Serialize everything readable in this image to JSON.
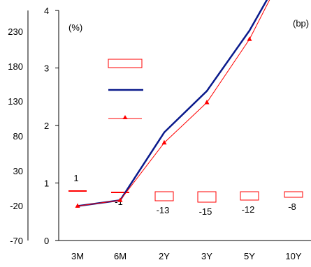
{
  "chart_data": {
    "type": "line",
    "categories": [
      "3M",
      "6M",
      "2Y",
      "3Y",
      "5Y",
      "10Y"
    ],
    "left_axis": {
      "label": "(%)",
      "ticks": [
        0,
        1,
        2,
        3,
        4
      ],
      "ylim": [
        0,
        4
      ]
    },
    "right_axis": {
      "label": "(bp)",
      "ticks": [
        -70,
        -20,
        30,
        80,
        130,
        180,
        230
      ],
      "ylim": [
        -70,
        260
      ]
    },
    "series": [
      {
        "values": [
          0.6,
          0.7,
          1.88,
          2.6,
          3.65,
          5.0
        ],
        "color": "#0a1a8c",
        "style": "line"
      },
      {
        "values": [
          0.6,
          0.7,
          1.7,
          2.4,
          3.5,
          5.0
        ],
        "color": "#ff0000",
        "style": "line-triangle"
      },
      {
        "values": [
          1,
          -1,
          -13,
          -15,
          -12,
          -8
        ],
        "color": "#ff0000",
        "style": "bar-outline",
        "axis": "right",
        "labels": [
          "1",
          "-1",
          "-13",
          "-15",
          "-12",
          "-8"
        ]
      }
    ]
  }
}
